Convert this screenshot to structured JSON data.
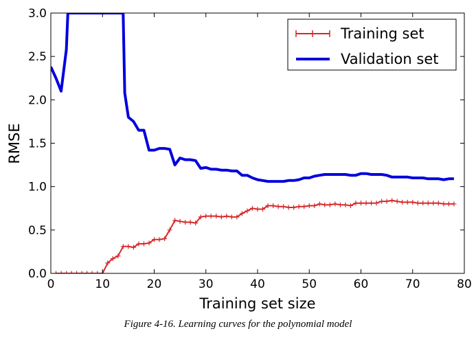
{
  "caption": "Figure 4-16. Learning curves for the polynomial model",
  "chart_data": {
    "type": "line",
    "title": "",
    "xlabel": "Training set size",
    "ylabel": "RMSE",
    "xlim": [
      0,
      80
    ],
    "ylim": [
      0.0,
      3.0
    ],
    "xticks": [
      "0",
      "10",
      "20",
      "30",
      "40",
      "50",
      "60",
      "70",
      "80"
    ],
    "yticks": [
      "0.0",
      "0.5",
      "1.0",
      "1.5",
      "2.0",
      "2.5",
      "3.0"
    ],
    "grid": false,
    "legend_position": "top-right",
    "series": [
      {
        "name": "Training set",
        "color": "#d62728",
        "marker": "plus",
        "x": [
          1,
          2,
          3,
          4,
          5,
          6,
          7,
          8,
          9,
          10,
          11,
          12,
          13,
          14,
          15,
          16,
          17,
          18,
          19,
          20,
          21,
          22,
          23,
          24,
          25,
          26,
          27,
          28,
          29,
          30,
          31,
          32,
          33,
          34,
          35,
          36,
          37,
          38,
          39,
          40,
          41,
          42,
          43,
          44,
          45,
          46,
          47,
          48,
          49,
          50,
          51,
          52,
          53,
          54,
          55,
          56,
          57,
          58,
          59,
          60,
          61,
          62,
          63,
          64,
          65,
          66,
          67,
          68,
          69,
          70,
          71,
          72,
          73,
          74,
          75,
          76,
          77,
          78
        ],
        "values": [
          0.0,
          0.0,
          0.0,
          0.0,
          0.0,
          0.0,
          0.0,
          0.0,
          0.0,
          0.0,
          0.12,
          0.17,
          0.2,
          0.31,
          0.31,
          0.3,
          0.34,
          0.34,
          0.35,
          0.39,
          0.39,
          0.4,
          0.5,
          0.61,
          0.6,
          0.59,
          0.59,
          0.58,
          0.65,
          0.66,
          0.66,
          0.66,
          0.65,
          0.66,
          0.65,
          0.65,
          0.69,
          0.72,
          0.75,
          0.74,
          0.74,
          0.78,
          0.78,
          0.77,
          0.77,
          0.76,
          0.76,
          0.77,
          0.77,
          0.78,
          0.78,
          0.8,
          0.79,
          0.79,
          0.8,
          0.79,
          0.79,
          0.78,
          0.81,
          0.81,
          0.81,
          0.81,
          0.81,
          0.83,
          0.83,
          0.84,
          0.83,
          0.82,
          0.82,
          0.82,
          0.81,
          0.81,
          0.81,
          0.81,
          0.81,
          0.8,
          0.8,
          0.8
        ]
      },
      {
        "name": "Validation set",
        "color": "#0000dd",
        "marker": "none",
        "x": [
          0,
          1,
          2,
          3,
          3.3,
          14,
          14.3,
          15,
          16,
          17,
          18,
          19,
          20,
          21,
          22,
          23,
          24,
          25,
          26,
          27,
          28,
          29,
          30,
          31,
          32,
          33,
          34,
          35,
          36,
          37,
          38,
          39,
          40,
          41,
          42,
          43,
          44,
          45,
          46,
          47,
          48,
          49,
          50,
          51,
          52,
          53,
          54,
          55,
          56,
          57,
          58,
          59,
          60,
          61,
          62,
          63,
          64,
          65,
          66,
          67,
          68,
          69,
          70,
          71,
          72,
          73,
          74,
          75,
          76,
          77,
          78
        ],
        "values": [
          2.38,
          2.25,
          2.1,
          2.58,
          3.0,
          3.0,
          2.08,
          1.8,
          1.75,
          1.65,
          1.65,
          1.42,
          1.42,
          1.44,
          1.44,
          1.43,
          1.25,
          1.33,
          1.31,
          1.31,
          1.3,
          1.21,
          1.22,
          1.2,
          1.2,
          1.19,
          1.19,
          1.18,
          1.18,
          1.13,
          1.13,
          1.1,
          1.08,
          1.07,
          1.06,
          1.06,
          1.06,
          1.06,
          1.07,
          1.07,
          1.08,
          1.1,
          1.1,
          1.12,
          1.13,
          1.14,
          1.14,
          1.14,
          1.14,
          1.14,
          1.13,
          1.13,
          1.15,
          1.15,
          1.14,
          1.14,
          1.14,
          1.13,
          1.11,
          1.11,
          1.11,
          1.11,
          1.1,
          1.1,
          1.1,
          1.09,
          1.09,
          1.09,
          1.08,
          1.09,
          1.09
        ]
      }
    ]
  }
}
